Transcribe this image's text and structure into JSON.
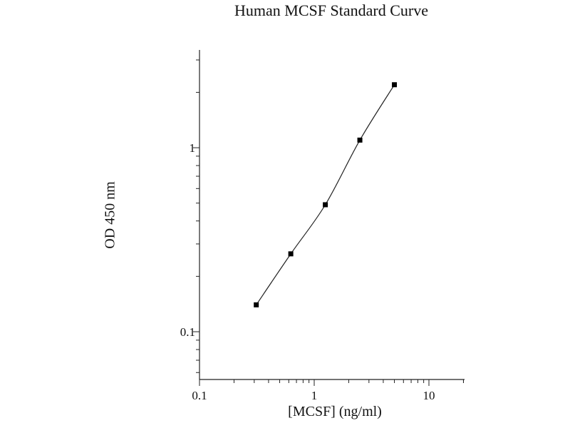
{
  "chart_data": {
    "type": "line",
    "title": "Human MCSF Standard Curve",
    "xlabel": "[MCSF] (ng/ml)",
    "ylabel": "OD 450 nm",
    "x_scale": "log",
    "y_scale": "log",
    "xlim": [
      0.1,
      20
    ],
    "ylim": [
      0.055,
      3.4
    ],
    "x_ticks": [
      {
        "value": 0.1,
        "label": "0.1"
      },
      {
        "value": 1,
        "label": "1"
      },
      {
        "value": 10,
        "label": "10"
      }
    ],
    "y_ticks": [
      {
        "value": 0.1,
        "label": "0.1"
      },
      {
        "value": 1,
        "label": "1"
      }
    ],
    "grid": false,
    "series": [
      {
        "x": [
          0.3125,
          0.625,
          1.25,
          2.5,
          5.0
        ],
        "y": [
          0.14,
          0.265,
          0.49,
          1.1,
          2.2
        ]
      }
    ]
  }
}
